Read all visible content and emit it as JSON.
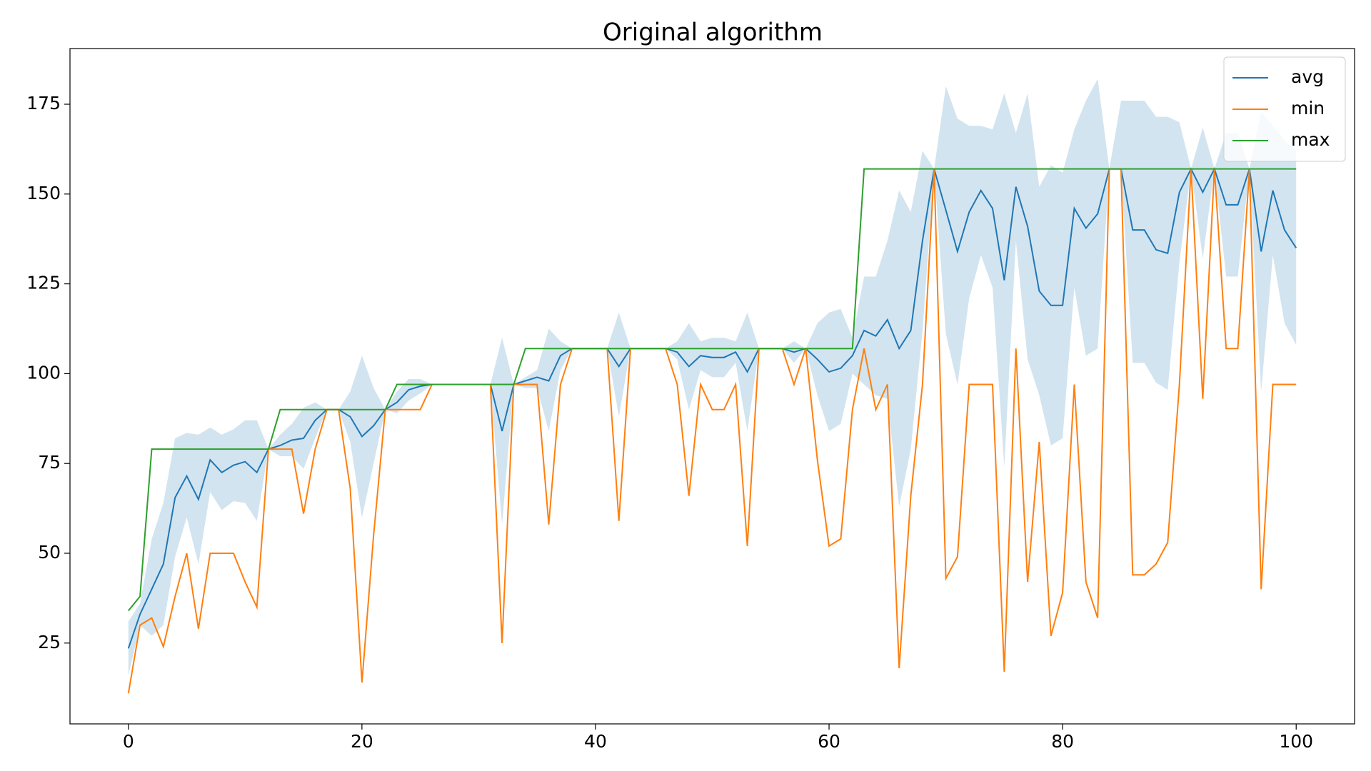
{
  "chart_data": {
    "type": "line",
    "title": "Original algorithm",
    "x": [
      0,
      1,
      2,
      3,
      4,
      5,
      6,
      7,
      8,
      9,
      10,
      11,
      12,
      13,
      14,
      15,
      16,
      17,
      18,
      19,
      20,
      21,
      22,
      23,
      24,
      25,
      26,
      27,
      28,
      29,
      30,
      31,
      32,
      33,
      34,
      35,
      36,
      37,
      38,
      39,
      40,
      41,
      42,
      43,
      44,
      45,
      46,
      47,
      48,
      49,
      50,
      51,
      52,
      53,
      54,
      55,
      56,
      57,
      58,
      59,
      60,
      61,
      62,
      63,
      64,
      65,
      66,
      67,
      68,
      69,
      70,
      71,
      72,
      73,
      74,
      75,
      76,
      77,
      78,
      79,
      80,
      81,
      82,
      83,
      84,
      85,
      86,
      87,
      88,
      89,
      90,
      91,
      92,
      93,
      94,
      95,
      96,
      97,
      98,
      99,
      100
    ],
    "series": [
      {
        "name": "avg",
        "color": "#1f77b4",
        "values": [
          23.5,
          33,
          40,
          47,
          65.5,
          71.5,
          65,
          76,
          72.5,
          74.5,
          75.5,
          72.5,
          79,
          80,
          81.5,
          82,
          87,
          90,
          90,
          88,
          82.5,
          85.5,
          90,
          92,
          95.5,
          96.5,
          97,
          97,
          97,
          97,
          97,
          97,
          84,
          97,
          98,
          99,
          98,
          105,
          107,
          107,
          107,
          107,
          102,
          107,
          107,
          107,
          107,
          106,
          102,
          105,
          104.5,
          104.5,
          106,
          100.5,
          107,
          107,
          107,
          106,
          107,
          104,
          100.5,
          101.5,
          105,
          112,
          110.5,
          115,
          107,
          112,
          137,
          157,
          145.5,
          134,
          145,
          151,
          146,
          126,
          152,
          141,
          123,
          119,
          119,
          146,
          140.5,
          144.5,
          157,
          157,
          140,
          140,
          134.5,
          133.5,
          150.5,
          157,
          150.5,
          157,
          147,
          147,
          157,
          134,
          151,
          140,
          135
        ]
      },
      {
        "name": "min",
        "color": "#ff7f0e",
        "values": [
          11,
          30,
          32,
          24,
          38,
          50,
          29,
          50,
          50,
          50,
          42,
          35,
          79,
          79,
          79,
          61,
          79,
          90,
          90,
          68,
          14,
          55,
          90,
          90,
          90,
          90,
          97,
          97,
          97,
          97,
          97,
          97,
          25,
          97,
          97,
          97,
          58,
          97,
          107,
          107,
          107,
          107,
          59,
          107,
          107,
          107,
          107,
          97,
          66,
          97,
          90,
          90,
          97,
          52,
          107,
          107,
          107,
          97,
          107,
          76,
          52,
          54,
          90,
          107,
          90,
          97,
          18,
          66,
          97,
          157,
          43,
          49,
          97,
          97,
          97,
          17,
          107,
          42,
          81,
          27,
          39,
          97,
          42,
          32,
          157,
          157,
          44,
          44,
          47,
          53,
          97,
          157,
          93,
          157,
          107,
          107,
          157,
          40,
          97,
          97,
          97
        ]
      },
      {
        "name": "max",
        "color": "#2ca02c",
        "values": [
          34,
          38,
          79,
          79,
          79,
          79,
          79,
          79,
          79,
          79,
          79,
          79,
          79,
          90,
          90,
          90,
          90,
          90,
          90,
          90,
          90,
          90,
          90,
          97,
          97,
          97,
          97,
          97,
          97,
          97,
          97,
          97,
          97,
          97,
          107,
          107,
          107,
          107,
          107,
          107,
          107,
          107,
          107,
          107,
          107,
          107,
          107,
          107,
          107,
          107,
          107,
          107,
          107,
          107,
          107,
          107,
          107,
          107,
          107,
          107,
          107,
          107,
          107,
          157,
          157,
          157,
          157,
          157,
          157,
          157,
          157,
          157,
          157,
          157,
          157,
          157,
          157,
          157,
          157,
          157,
          157,
          157,
          157,
          157,
          157,
          157,
          157,
          157,
          157,
          157,
          157,
          157,
          157,
          157,
          157,
          157,
          157,
          157,
          157,
          157,
          157
        ]
      }
    ],
    "band": {
      "color": "#1f77b4",
      "upper": [
        31,
        36,
        54,
        64,
        82,
        83.5,
        83,
        85,
        83,
        84.5,
        87,
        87,
        79,
        83,
        86,
        90.5,
        92,
        90,
        90,
        95,
        105,
        96,
        90,
        95,
        98.5,
        98.5,
        97,
        97,
        97,
        97,
        97,
        97,
        110,
        97,
        99,
        101,
        112.5,
        109,
        107,
        107,
        107,
        107,
        117,
        107,
        107,
        107,
        107,
        109,
        114,
        109,
        110,
        110,
        109,
        117,
        107,
        107,
        107,
        109,
        107,
        114,
        117,
        118,
        110,
        127,
        127,
        137,
        151,
        145,
        162,
        157,
        180,
        171,
        169,
        169,
        168,
        178,
        167,
        178,
        152,
        158,
        156,
        168,
        176,
        182,
        157,
        176,
        176,
        176,
        171.5,
        171.5,
        170,
        157,
        168.5,
        157,
        167,
        167,
        157,
        173,
        169,
        165,
        162
      ],
      "lower": [
        16,
        30,
        27,
        30,
        49,
        60,
        47,
        67,
        62,
        64.5,
        64,
        59,
        79,
        77,
        77,
        73.5,
        82,
        90,
        90,
        81,
        60,
        75,
        90,
        89,
        92.5,
        94.5,
        97,
        97,
        97,
        97,
        97,
        97,
        58,
        97,
        96,
        96,
        84,
        101,
        107,
        107,
        107,
        107,
        88,
        107,
        107,
        107,
        107,
        104,
        90,
        101,
        99,
        99,
        103,
        84,
        107,
        107,
        107,
        103,
        107,
        94,
        84,
        86,
        100,
        97,
        94,
        93,
        63,
        79,
        112,
        157,
        111,
        97,
        121,
        133,
        124,
        74,
        137,
        104,
        94,
        80,
        82,
        124,
        105,
        107,
        157,
        157,
        103,
        103,
        97.5,
        95.5,
        131,
        157,
        132,
        157,
        127,
        127,
        157,
        95,
        133,
        114,
        108
      ]
    },
    "xlim": [
      -5,
      105
    ],
    "ylim": [
      2.5,
      190.5
    ],
    "xticks": [
      0,
      20,
      40,
      60,
      80,
      100
    ],
    "yticks": [
      25,
      50,
      75,
      100,
      125,
      150,
      175
    ],
    "grid": false,
    "legend": "upper right"
  }
}
